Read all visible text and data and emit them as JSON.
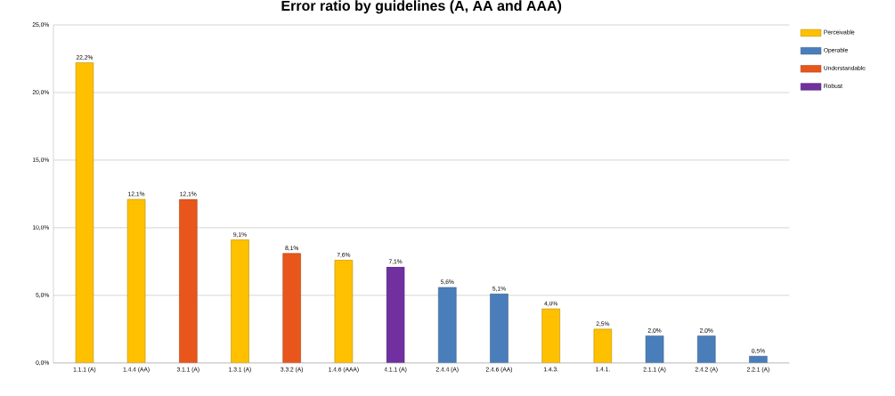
{
  "chart_data": {
    "type": "bar",
    "title": "Error ratio by guidelines  (A, AA and AAA)",
    "categories": [
      "1.1.1  (A)",
      "1.4.4  (AA)",
      "3.1.1 (A)",
      "1.3.1  (A)",
      "3.3.2  (A)",
      "1.4.6  (AAA)",
      "4.1.1  (A)",
      "2.4.4  (A)",
      "2.4.6  (AA)",
      "1.4.3.",
      "1.4.1.",
      "2.1.1 (A)",
      "2.4.2 (A)",
      "2.2.1 (A)"
    ],
    "series": [
      {
        "name": "Perceivable",
        "color": "#ffc000",
        "values": [
          22.2,
          12.1,
          null,
          9.1,
          null,
          7.6,
          null,
          null,
          null,
          4.0,
          2.5,
          null,
          null,
          null
        ],
        "value_labels": [
          "22,2%",
          "12,1%",
          null,
          "9,1%",
          null,
          "7,6%",
          null,
          null,
          null,
          "4,0%",
          "2,5%",
          null,
          null,
          null
        ]
      },
      {
        "name": "Operable",
        "color": "#4a7ebb",
        "values": [
          null,
          null,
          null,
          null,
          null,
          null,
          null,
          5.6,
          5.1,
          null,
          null,
          2.0,
          2.0,
          0.5
        ],
        "value_labels": [
          null,
          null,
          null,
          null,
          null,
          null,
          null,
          "5,6%",
          "5,1%",
          null,
          null,
          "2,0%",
          "2,0%",
          "0,5%"
        ]
      },
      {
        "name": "Understandable",
        "color": "#e8561c",
        "values": [
          null,
          null,
          12.1,
          null,
          8.1,
          null,
          null,
          null,
          null,
          null,
          null,
          null,
          null,
          null
        ],
        "value_labels": [
          null,
          null,
          "12,1%",
          null,
          "8,1%",
          null,
          null,
          null,
          null,
          null,
          null,
          null,
          null,
          null
        ]
      },
      {
        "name": "Robust",
        "color": "#7030a0",
        "values": [
          null,
          null,
          null,
          null,
          null,
          null,
          7.1,
          null,
          null,
          null,
          null,
          null,
          null,
          null
        ],
        "value_labels": [
          null,
          null,
          null,
          null,
          null,
          null,
          "7,1%",
          null,
          null,
          null,
          null,
          null,
          null,
          null
        ]
      }
    ],
    "ylim": [
      0,
      25
    ],
    "yticks": [
      {
        "value": 0,
        "label": "0,0%"
      },
      {
        "value": 5,
        "label": "5,0%"
      },
      {
        "value": 10,
        "label": "10,0%"
      },
      {
        "value": 15,
        "label": "15,0%"
      },
      {
        "value": 20,
        "label": "20,0%"
      },
      {
        "value": 25,
        "label": "25,0%"
      }
    ],
    "grid": "y",
    "legend": "top right"
  }
}
